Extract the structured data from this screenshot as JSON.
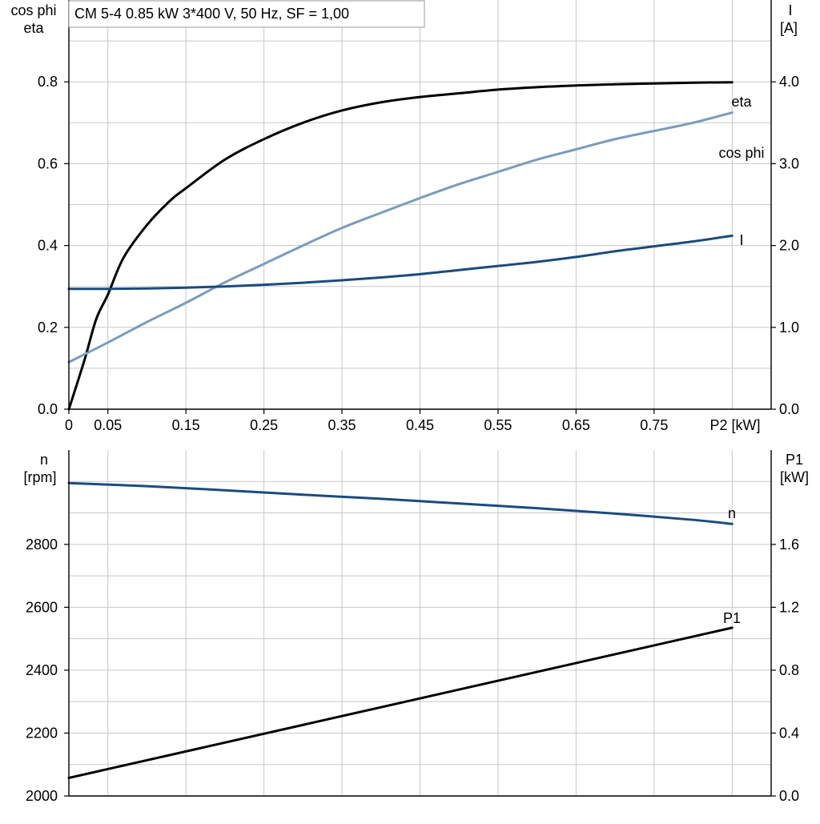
{
  "title": "CM 5-4   0.85 kW   3*400 V, 50 Hz, SF = 1,00",
  "colors": {
    "eta": "#000000",
    "cos_phi": "#7a9cbb",
    "I": "#1b4b7e",
    "n": "#1b4b7e",
    "P1": "#000000",
    "grid": "#c8c8c8"
  },
  "chart_data": [
    {
      "type": "line",
      "panel": "top",
      "x_label": "P2 [kW]",
      "x_ticks": [
        "0",
        "0.05",
        "0.15",
        "0.25",
        "0.35",
        "0.45",
        "0.55",
        "0.65",
        "0.75"
      ],
      "x_tick_values": [
        0,
        0.05,
        0.15,
        0.25,
        0.35,
        0.45,
        0.55,
        0.65,
        0.75
      ],
      "xlim": [
        0,
        0.9
      ],
      "left_axis": {
        "label_line1": "cos phi",
        "label_line2": "eta",
        "ylim": [
          0,
          1.0
        ],
        "ticks": [
          "0.0",
          "0.2",
          "0.4",
          "0.6",
          "0.8"
        ],
        "tick_values": [
          0,
          0.2,
          0.4,
          0.6,
          0.8
        ]
      },
      "right_axis": {
        "label_line1": "I",
        "label_line2": "[A]",
        "ylim": [
          0,
          5.0
        ],
        "ticks": [
          "0.0",
          "1.0",
          "2.0",
          "3.0",
          "4.0"
        ],
        "tick_values": [
          0,
          1.0,
          2.0,
          3.0,
          4.0
        ]
      },
      "series": [
        {
          "name": "eta",
          "axis": "left",
          "color_key": "eta",
          "x": [
            0,
            0.02,
            0.035,
            0.05,
            0.07,
            0.1,
            0.13,
            0.15,
            0.2,
            0.25,
            0.3,
            0.35,
            0.4,
            0.45,
            0.5,
            0.55,
            0.6,
            0.65,
            0.7,
            0.75,
            0.8,
            0.85
          ],
          "y": [
            0.0,
            0.12,
            0.22,
            0.28,
            0.37,
            0.45,
            0.51,
            0.54,
            0.61,
            0.66,
            0.7,
            0.73,
            0.75,
            0.763,
            0.772,
            0.781,
            0.787,
            0.791,
            0.794,
            0.796,
            0.798,
            0.799
          ]
        },
        {
          "name": "cos phi",
          "axis": "left",
          "color_key": "cos_phi",
          "x": [
            0,
            0.05,
            0.1,
            0.15,
            0.2,
            0.25,
            0.3,
            0.35,
            0.4,
            0.45,
            0.5,
            0.55,
            0.6,
            0.65,
            0.7,
            0.75,
            0.8,
            0.85
          ],
          "y": [
            0.115,
            0.163,
            0.213,
            0.26,
            0.31,
            0.355,
            0.4,
            0.443,
            0.48,
            0.516,
            0.55,
            0.58,
            0.61,
            0.635,
            0.66,
            0.68,
            0.7,
            0.725
          ]
        },
        {
          "name": "I",
          "axis": "right",
          "color_key": "I",
          "x": [
            0,
            0.05,
            0.1,
            0.15,
            0.2,
            0.25,
            0.3,
            0.35,
            0.4,
            0.45,
            0.5,
            0.55,
            0.6,
            0.65,
            0.7,
            0.75,
            0.8,
            0.85
          ],
          "y": [
            1.47,
            1.47,
            1.475,
            1.485,
            1.5,
            1.52,
            1.545,
            1.575,
            1.61,
            1.65,
            1.7,
            1.75,
            1.8,
            1.86,
            1.93,
            1.99,
            2.05,
            2.12
          ]
        }
      ],
      "series_labels": [
        "eta",
        "cos phi",
        "I"
      ]
    },
    {
      "type": "line",
      "panel": "bottom",
      "xlim": [
        0,
        0.9
      ],
      "left_axis": {
        "label_line1": "n",
        "label_line2": "[rpm]",
        "ylim": [
          2000,
          3100
        ],
        "ticks": [
          "2000",
          "2200",
          "2400",
          "2600",
          "2800"
        ],
        "tick_values": [
          2000,
          2200,
          2400,
          2600,
          2800
        ]
      },
      "right_axis": {
        "label_line1": "P1",
        "label_line2": "[kW]",
        "ylim": [
          0,
          2.2
        ],
        "ticks": [
          "0.0",
          "0.4",
          "0.8",
          "1.2",
          "1.6"
        ],
        "tick_values": [
          0,
          0.4,
          0.8,
          1.2,
          1.6
        ]
      },
      "series": [
        {
          "name": "n",
          "axis": "left",
          "color_key": "n",
          "x": [
            0,
            0.1,
            0.2,
            0.3,
            0.4,
            0.5,
            0.6,
            0.7,
            0.8,
            0.85
          ],
          "y": [
            2995,
            2985,
            2972,
            2958,
            2945,
            2930,
            2915,
            2898,
            2878,
            2865
          ]
        },
        {
          "name": "P1",
          "axis": "right",
          "color_key": "P1",
          "x": [
            0,
            0.85
          ],
          "y": [
            0.115,
            1.07
          ]
        }
      ],
      "series_labels": [
        "n",
        "P1"
      ]
    }
  ]
}
